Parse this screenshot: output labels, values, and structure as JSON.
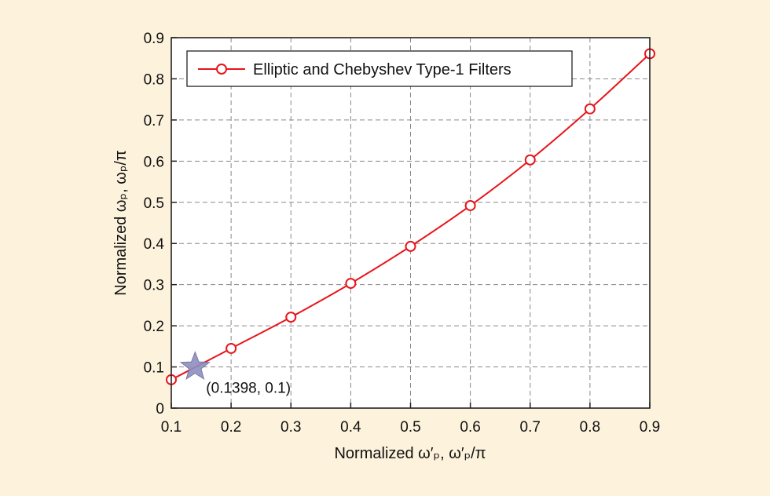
{
  "chart_data": {
    "type": "line",
    "title": "",
    "xlabel": "Normalized ω′ₚ, ω′ₚ/π",
    "ylabel": "Normalized ωₚ, ωₚ/π",
    "xlim": [
      0.1,
      0.9
    ],
    "ylim": [
      0,
      0.9
    ],
    "xticks": [
      "0.1",
      "0.2",
      "0.3",
      "0.4",
      "0.5",
      "0.6",
      "0.7",
      "0.8",
      "0.9"
    ],
    "yticks": [
      "0",
      "0.1",
      "0.2",
      "0.3",
      "0.4",
      "0.5",
      "0.6",
      "0.7",
      "0.8",
      "0.9"
    ],
    "grid": true,
    "legend_position": "top-left",
    "series": [
      {
        "name": "Elliptic and Chebyshev Type-1 Filters",
        "color": "#e8141b",
        "marker": "circle",
        "x": [
          0.1,
          0.2,
          0.3,
          0.4,
          0.5,
          0.6,
          0.7,
          0.8,
          0.9
        ],
        "y": [
          0.069,
          0.145,
          0.221,
          0.303,
          0.393,
          0.492,
          0.603,
          0.727,
          0.861
        ]
      }
    ],
    "annotations": [
      {
        "text": "(0.1398, 0.1)",
        "x": 0.1398,
        "y": 0.1,
        "marker": "star",
        "color": "#8e8fc0"
      }
    ]
  }
}
